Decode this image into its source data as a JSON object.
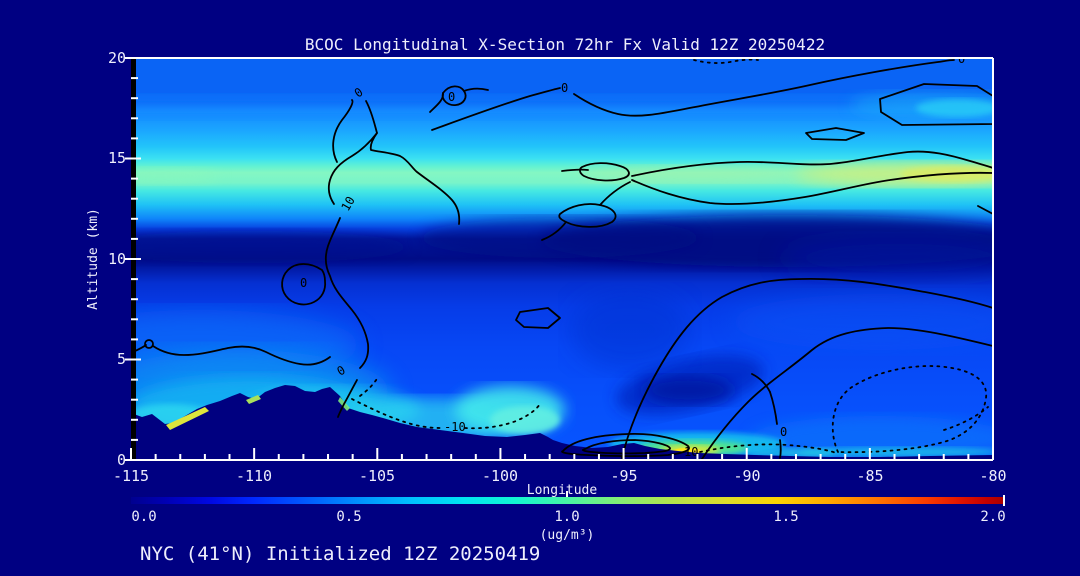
{
  "title": "BCOC Longitudinal X-Section 72hr  Fx Valid 12Z 20250422",
  "footer": "NYC (41°N) Initialized 12Z 20250419",
  "axes": {
    "x": {
      "label": "Longitude",
      "ticks": [
        "-115",
        "-110",
        "-105",
        "-100",
        "-95",
        "-90",
        "-85",
        "-80"
      ]
    },
    "y": {
      "label": "Altitude (km)",
      "ticks": [
        "0",
        "5",
        "10",
        "15",
        "20"
      ]
    }
  },
  "colorbar": {
    "ticks": [
      "0.0",
      "0.5",
      "1.0",
      "1.5",
      "2.0"
    ],
    "unit": "(ug/m³)",
    "min": 0.0,
    "max": 2.0
  },
  "contour_labels": [
    "0",
    "0",
    "10",
    "0",
    "0",
    "0",
    "-10",
    "10",
    "0",
    "0"
  ],
  "colors": {
    "background": "#000082",
    "text": "#eeeefc",
    "contour_line": "#000000",
    "axis": "#ffffff",
    "terrain": "#000080"
  },
  "chart_data": {
    "type": "heatmap",
    "title": "BCOC Longitudinal X-Section 72hr  Fx Valid 12Z 20250422",
    "subtitle": "NYC (41°N) Initialized 12Z 20250419",
    "xlabel": "Longitude",
    "ylabel": "Altitude (km)",
    "xlim": [
      -115,
      -80
    ],
    "ylim": [
      0,
      20
    ],
    "colorbar_range": [
      0.0,
      2.0
    ],
    "colorbar_unit": "ug/m3",
    "colormap": "jet",
    "overlay_contour_levels": [
      -10,
      0,
      10
    ],
    "x": [
      -115,
      -110,
      -105,
      -100,
      -95,
      -90,
      -85,
      -80
    ],
    "altitude_km": [
      18,
      15,
      14.5,
      12.5,
      11,
      8,
      5,
      2,
      0.5
    ],
    "values_ug_m3": [
      [
        0.22,
        0.22,
        0.22,
        0.25,
        0.25,
        0.25,
        0.28,
        0.28
      ],
      [
        0.42,
        0.42,
        0.45,
        0.5,
        0.5,
        0.52,
        0.55,
        0.6
      ],
      [
        0.6,
        0.6,
        0.62,
        0.62,
        0.62,
        0.65,
        0.7,
        0.72
      ],
      [
        0.3,
        0.3,
        0.32,
        0.3,
        0.28,
        0.3,
        0.3,
        0.32
      ],
      [
        0.05,
        0.05,
        0.05,
        0.03,
        0.02,
        0.02,
        0.02,
        0.05
      ],
      [
        0.15,
        0.15,
        0.16,
        0.15,
        0.14,
        0.15,
        0.16,
        0.17
      ],
      [
        0.2,
        0.22,
        0.2,
        0.18,
        0.16,
        0.15,
        0.18,
        0.2
      ],
      [
        0.3,
        0.45,
        0.4,
        0.35,
        0.2,
        0.5,
        0.25,
        0.22
      ],
      [
        null,
        null,
        0.45,
        0.4,
        0.3,
        1.0,
        0.35,
        0.3
      ]
    ],
    "notes": "Filled longitude-altitude cross-section; dark navy silhouette along bottom is terrain (Rockies peak ~3.5 km near -106). Bright surface maximum near -90. Black solid contours = 0 and 10, dotted contours = -10."
  }
}
